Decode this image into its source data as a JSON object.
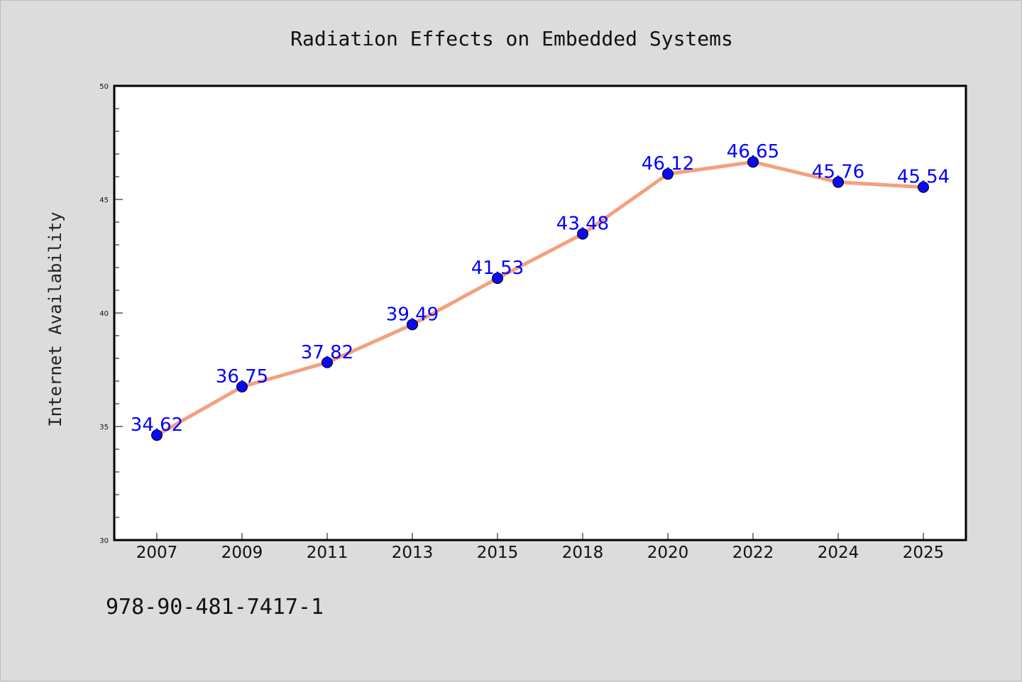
{
  "chart_data": {
    "type": "line",
    "title": "Radiation Effects on Embedded Systems",
    "xlabel": "",
    "ylabel": "Internet Availability",
    "categories": [
      "2007",
      "2009",
      "2011",
      "2013",
      "2015",
      "2018",
      "2020",
      "2022",
      "2024",
      "2025"
    ],
    "series": [
      {
        "values": [
          34.62,
          36.75,
          37.82,
          39.49,
          41.53,
          43.48,
          46.12,
          46.65,
          45.76,
          45.54
        ],
        "data_labels": [
          "34.62",
          "36.75",
          "37.82",
          "39.49",
          "41.53",
          "43.48",
          "46.12",
          "46.65",
          "45.76",
          "45.54"
        ],
        "line_color": "#f4a07f",
        "marker_color": "#0a0af0",
        "label_color": "#0000ff"
      }
    ],
    "ylim": [
      30,
      50
    ],
    "yticks": [
      30,
      35,
      40,
      45,
      50
    ],
    "grid": false,
    "legend": "none"
  },
  "footer": {
    "isbn": "978-90-481-7417-1"
  },
  "colors": {
    "background": "#dcdcdc",
    "plot_area": "#ffffff",
    "axis": "#000000"
  }
}
